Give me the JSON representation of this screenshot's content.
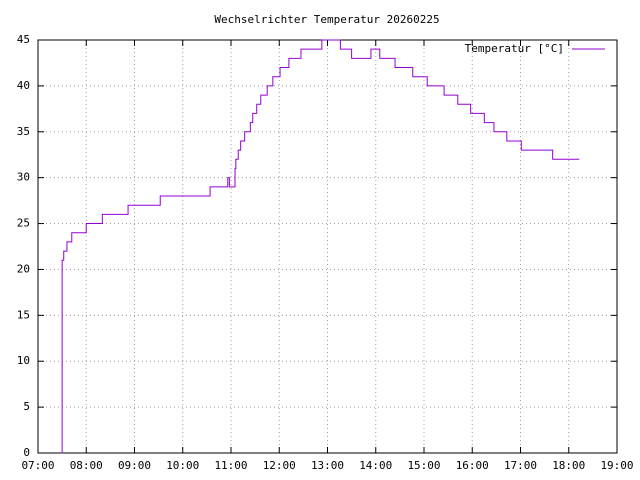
{
  "chart_data": {
    "type": "line",
    "title": "Wechselrichter Temperatur 20260225",
    "x": [
      "07:29",
      "07:30",
      "07:31",
      "07:32",
      "07:36",
      "07:42",
      "08:00",
      "08:20",
      "08:52",
      "09:32",
      "10:34",
      "10:56",
      "10:58",
      "11:05",
      "11:06",
      "11:09",
      "11:12",
      "11:17",
      "11:24",
      "11:27",
      "11:32",
      "11:37",
      "11:45",
      "11:52",
      "12:01",
      "12:12",
      "12:27",
      "12:53",
      "13:16",
      "13:30",
      "13:54",
      "14:05",
      "14:24",
      "14:46",
      "15:04",
      "15:25",
      "15:42",
      "15:58",
      "16:15",
      "16:27",
      "16:43",
      "17:01",
      "17:40",
      "18:13"
    ],
    "series": [
      {
        "name": "Temperatur [°C]",
        "color": "#9400d3",
        "values": [
          0,
          21,
          21,
          22,
          23,
          24,
          25,
          26,
          27,
          28,
          29,
          30,
          29,
          31,
          32,
          33,
          34,
          35,
          36,
          37,
          38,
          39,
          40,
          41,
          42,
          43,
          44,
          45,
          44,
          43,
          44,
          43,
          42,
          41,
          40,
          39,
          38,
          37,
          36,
          35,
          34,
          33,
          32,
          32
        ]
      }
    ],
    "steps": true,
    "xlim": [
      "07:00",
      "19:00"
    ],
    "xticks": [
      "07:00",
      "08:00",
      "09:00",
      "10:00",
      "11:00",
      "12:00",
      "13:00",
      "14:00",
      "15:00",
      "16:00",
      "17:00",
      "18:00",
      "19:00"
    ],
    "ylim": [
      0,
      45
    ],
    "yticks": [
      0,
      5,
      10,
      15,
      20,
      25,
      30,
      35,
      40,
      45
    ],
    "grid": true,
    "legend": "top-right"
  }
}
